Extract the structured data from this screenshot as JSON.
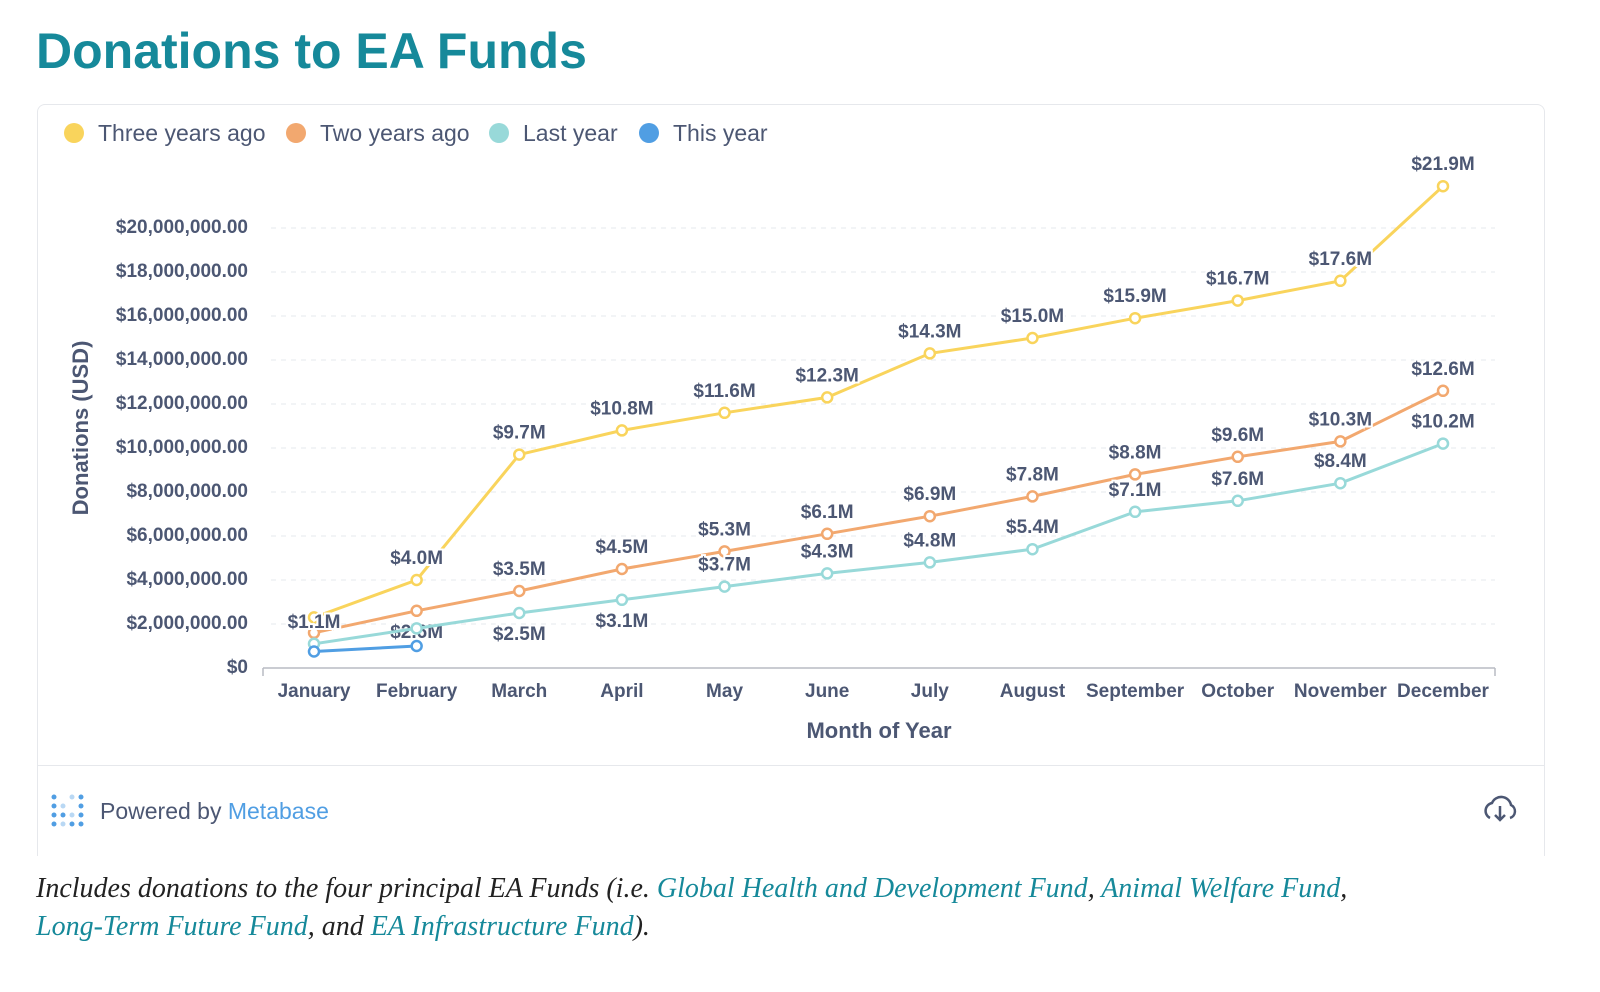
{
  "title": "Donations to EA Funds",
  "chart_data": {
    "type": "line",
    "xlabel": "Month of Year",
    "ylabel": "Donations (USD)",
    "categories": [
      "January",
      "February",
      "March",
      "April",
      "May",
      "June",
      "July",
      "August",
      "September",
      "October",
      "November",
      "December"
    ],
    "series": [
      {
        "name": "Three years ago",
        "color": "#f9d45c",
        "values": [
          2300000,
          4000000,
          9700000,
          10800000,
          11600000,
          12300000,
          14300000,
          15000000,
          15900000,
          16700000,
          17600000,
          21900000
        ],
        "value_labels": [
          null,
          "$4.0M",
          "$9.7M",
          "$10.8M",
          "$11.6M",
          "$12.3M",
          "$14.3M",
          "$15.0M",
          "$15.9M",
          "$16.7M",
          "$17.6M",
          "$21.9M"
        ]
      },
      {
        "name": "Two years ago",
        "color": "#f2a86f",
        "values": [
          1600000,
          2600000,
          3500000,
          4500000,
          5300000,
          6100000,
          6900000,
          7800000,
          8800000,
          9600000,
          10300000,
          12600000
        ],
        "value_labels": [
          null,
          "$2.6M",
          "$3.5M",
          "$4.5M",
          "$5.3M",
          "$6.1M",
          "$6.9M",
          "$7.8M",
          "$8.8M",
          "$9.6M",
          "$10.3M",
          "$12.6M"
        ]
      },
      {
        "name": "Last year",
        "color": "#98d9d9",
        "values": [
          1100000,
          1800000,
          2500000,
          3100000,
          3700000,
          4300000,
          4800000,
          5400000,
          7100000,
          7600000,
          8400000,
          10200000
        ],
        "value_labels": [
          "$1.1M",
          null,
          "$2.5M",
          "$3.1M",
          "$3.7M",
          "$4.3M",
          "$4.8M",
          "$5.4M",
          "$7.1M",
          "$7.6M",
          "$8.4M",
          "$10.2M"
        ]
      },
      {
        "name": "This year",
        "color": "#509ee3",
        "values": [
          750000,
          1000000,
          null,
          null,
          null,
          null,
          null,
          null,
          null,
          null,
          null,
          null
        ]
      }
    ],
    "ylim": [
      0,
      22000000
    ],
    "yticks": [
      {
        "value": 0,
        "label": "$0"
      },
      {
        "value": 2000000,
        "label": "$2,000,000.00"
      },
      {
        "value": 4000000,
        "label": "$4,000,000.00"
      },
      {
        "value": 6000000,
        "label": "$6,000,000.00"
      },
      {
        "value": 8000000,
        "label": "$8,000,000.00"
      },
      {
        "value": 10000000,
        "label": "$10,000,000.00"
      },
      {
        "value": 12000000,
        "label": "$12,000,000.00"
      },
      {
        "value": 14000000,
        "label": "$14,000,000.00"
      },
      {
        "value": 16000000,
        "label": "$16,000,000.00"
      },
      {
        "value": 18000000,
        "label": "$18,000,000.00"
      },
      {
        "value": 20000000,
        "label": "$20,000,000.00"
      }
    ],
    "grid": true,
    "legend": "top-left"
  },
  "footer": {
    "prefix": "Powered by",
    "brand": "Metabase"
  },
  "caption": [
    "Includes donations to the four principal EA Funds (i.e. ",
    "Global Health and Development Fund",
    ", ",
    "Animal Welfare Fund",
    ",",
    "Long-Term Future Fund",
    ", and ",
    "EA Infrastructure Fund",
    ")."
  ]
}
